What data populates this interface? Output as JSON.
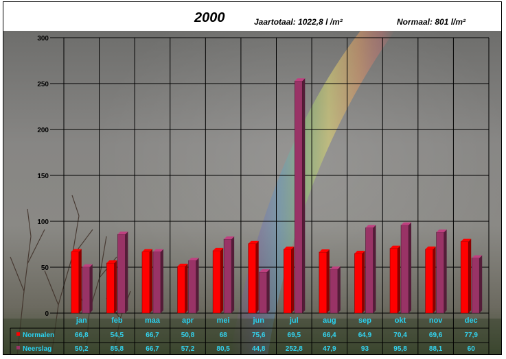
{
  "header": {
    "title": "2000",
    "year_total": "Jaartotaal: 1022,8 l /m²",
    "normal": "Normaal: 801 l/m²"
  },
  "chart_data": {
    "type": "bar",
    "categories": [
      "jan",
      "feb",
      "maa",
      "apr",
      "mei",
      "jun",
      "jul",
      "aug",
      "sep",
      "okt",
      "nov",
      "dec"
    ],
    "y_ticks": [
      "0",
      "50",
      "100",
      "150",
      "200",
      "250",
      "300"
    ],
    "ylim": [
      0,
      300
    ],
    "grid": true,
    "series": [
      {
        "name": "Normalen",
        "color": "#ff0000",
        "values": [
          66.8,
          54.5,
          66.7,
          50.8,
          68,
          75.6,
          69.5,
          66.4,
          64.9,
          70.4,
          69.6,
          77.9
        ],
        "labels": [
          "66,8",
          "54,5",
          "66,7",
          "50,8",
          "68",
          "75,6",
          "69,5",
          "66,4",
          "64,9",
          "70,4",
          "69,6",
          "77,9"
        ]
      },
      {
        "name": "Neerslag",
        "color": "#993366",
        "values": [
          50.2,
          85.8,
          66.7,
          57.2,
          80.5,
          44.8,
          252.8,
          47.9,
          93,
          95.8,
          88.1,
          60
        ],
        "labels": [
          "50,2",
          "85,8",
          "66,7",
          "57,2",
          "80,5",
          "44,8",
          "252,8",
          "47,9",
          "93",
          "95,8",
          "88,1",
          "60"
        ]
      }
    ]
  }
}
